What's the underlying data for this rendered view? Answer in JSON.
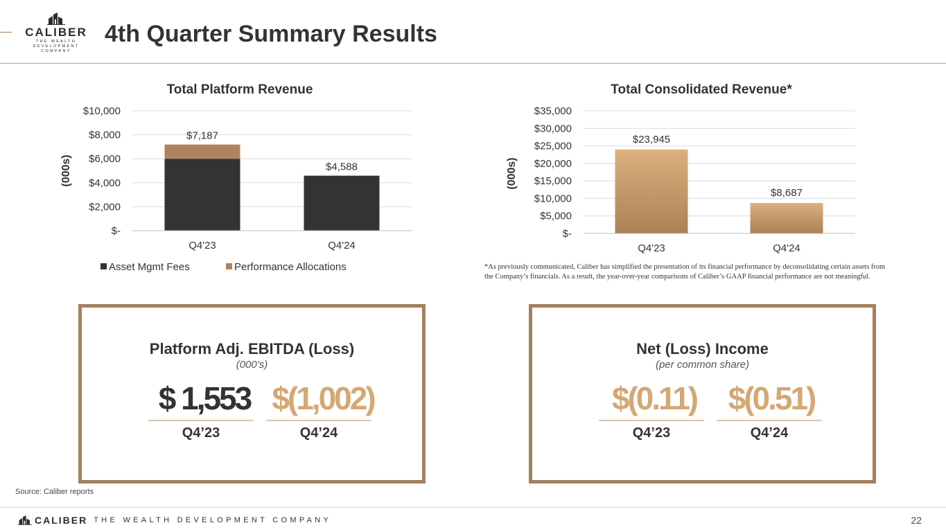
{
  "header": {
    "logo_word": "CALIBER",
    "logo_tagline_1": "THE WEALTH DEVELOPMENT",
    "logo_tagline_2": "COMPANY",
    "title": "4th Quarter Summary Results"
  },
  "chart_data": [
    {
      "type": "bar",
      "stacked": true,
      "title": "Total Platform Revenue",
      "ylabel": "(000s)",
      "xlabel": "",
      "categories": [
        "Q4'23",
        "Q4'24"
      ],
      "series": [
        {
          "name": "Asset Mgmt Fees",
          "values": [
            6000,
            4588
          ],
          "color": "#333333"
        },
        {
          "name": "Performance Allocations",
          "values": [
            1187,
            0
          ],
          "color": "#b08360"
        }
      ],
      "total_labels": [
        "$7,187",
        "$4,588"
      ],
      "yticks": [
        0,
        2000,
        4000,
        6000,
        8000,
        10000
      ],
      "ytick_labels": [
        "$-",
        "$2,000",
        "$4,000",
        "$6,000",
        "$8,000",
        "$10,000"
      ],
      "ylim": [
        0,
        10000
      ],
      "grid": true,
      "legend": "bottom"
    },
    {
      "type": "bar",
      "title": "Total Consolidated Revenue*",
      "ylabel": "(000s)",
      "xlabel": "",
      "categories": [
        "Q4'23",
        "Q4'24"
      ],
      "series": [
        {
          "name": "Total Consolidated Revenue",
          "values": [
            23945,
            8687
          ],
          "color_top": "#dcb07c",
          "color_bottom": "#ab8158"
        }
      ],
      "value_labels": [
        "$23,945",
        "$8,687"
      ],
      "yticks": [
        0,
        5000,
        10000,
        15000,
        20000,
        25000,
        30000,
        35000
      ],
      "ytick_labels": [
        "$-",
        "$5,000",
        "$10,000",
        "$15,000",
        "$20,000",
        "$25,000",
        "$30,000",
        "$35,000"
      ],
      "ylim": [
        0,
        35000
      ],
      "grid": true,
      "legend": "none"
    }
  ],
  "footnote": {
    "line1": "*As previously communicated, Caliber has simplified the presentation of its financial performance by deconsolidating certain assets from",
    "line2": "the Company’s financials. As a result, the year-over-year comparisons of Caliber’s GAAP financial performance are not meaningful."
  },
  "kpis": {
    "ebitda": {
      "title": "Platform Adj. EBITDA (Loss)",
      "subtitle": "(000’s)",
      "value_q423": "$ 1,553",
      "value_q424": "$(1,002)",
      "period_q423": "Q4’23",
      "period_q424": "Q4’24"
    },
    "net_income": {
      "title": "Net (Loss) Income",
      "subtitle": "(per common share)",
      "value_q423": "$(0.11)",
      "value_q424": "$(0.51)",
      "period_q423": "Q4’23",
      "period_q424": "Q4’24"
    }
  },
  "colors": {
    "dark": "#333333",
    "gold": "#d4a874",
    "bronze": "#a4805e"
  },
  "footer": {
    "source": "Source: Caliber reports",
    "logo_word": "CALIBER",
    "tagline": "THE WEALTH DEVELOPMENT COMPANY",
    "page_number": "22"
  }
}
